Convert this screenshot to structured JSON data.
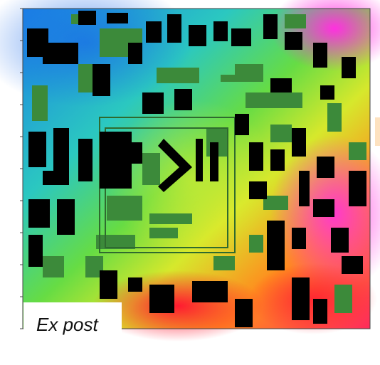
{
  "panel": {
    "label": "Ex post"
  }
}
